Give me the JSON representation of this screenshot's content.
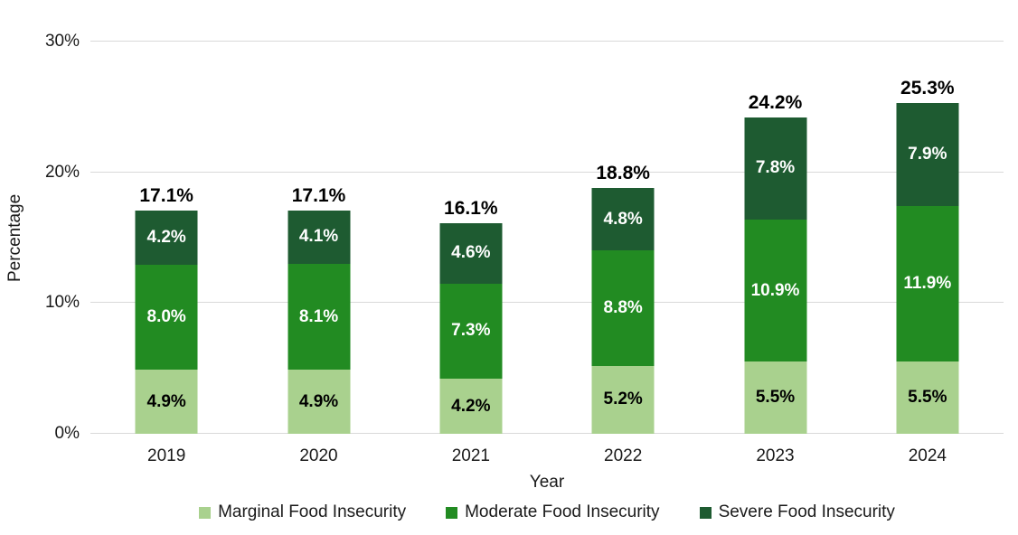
{
  "chart_data": {
    "type": "bar",
    "stacked": true,
    "title": "",
    "xlabel": "Year",
    "ylabel": "Percentage",
    "ylim": [
      0,
      30
    ],
    "y_ticks": [
      "0%",
      "10%",
      "20%",
      "30%"
    ],
    "y_tick_values": [
      0,
      10,
      20,
      30
    ],
    "grid": true,
    "gridline_color": "#d9d9d9",
    "legend_position": "bottom",
    "categories": [
      "2019",
      "2020",
      "2021",
      "2022",
      "2023",
      "2024"
    ],
    "series": [
      {
        "name": "Marginal Food Insecurity",
        "color": "#A9D18E",
        "label_color": "#000000",
        "values": [
          4.9,
          4.9,
          4.2,
          5.2,
          5.5,
          5.5
        ],
        "labels": [
          "4.9%",
          "4.9%",
          "4.2%",
          "5.2%",
          "5.5%",
          "5.5%"
        ]
      },
      {
        "name": "Moderate Food Insecurity",
        "color": "#228B22",
        "label_color": "#FFFFFF",
        "values": [
          8.0,
          8.1,
          7.3,
          8.8,
          10.9,
          11.9
        ],
        "labels": [
          "8.0%",
          "8.1%",
          "7.3%",
          "8.8%",
          "10.9%",
          "11.9%"
        ]
      },
      {
        "name": "Severe Food Insecurity",
        "color": "#1E5B31",
        "label_color": "#FFFFFF",
        "values": [
          4.2,
          4.1,
          4.6,
          4.8,
          7.8,
          7.9
        ],
        "labels": [
          "4.2%",
          "4.1%",
          "4.6%",
          "4.8%",
          "7.8%",
          "7.9%"
        ]
      }
    ],
    "totals": [
      "17.1%",
      "17.1%",
      "16.1%",
      "18.8%",
      "24.2%",
      "25.3%"
    ]
  }
}
